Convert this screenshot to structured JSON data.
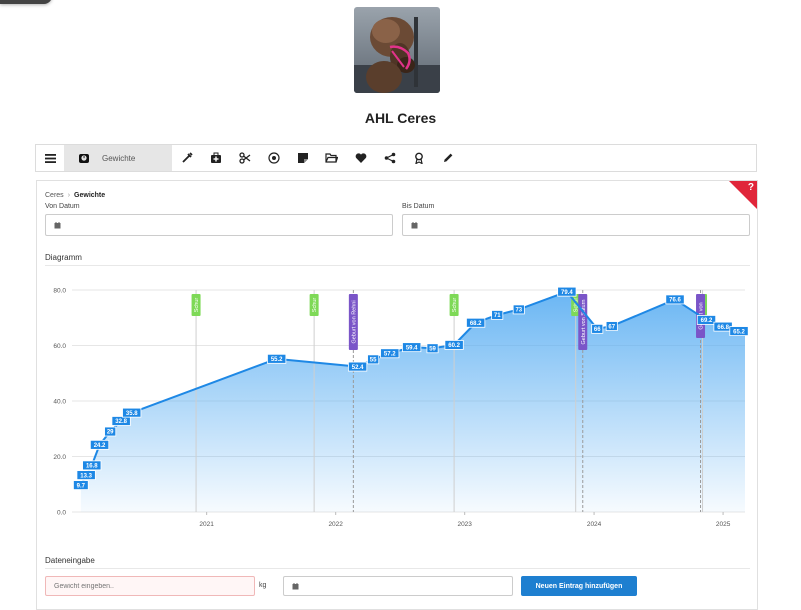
{
  "animal": {
    "name": "AHL Ceres"
  },
  "toolbar": {
    "active_label": "Gewichte",
    "icons": [
      "syringe-icon",
      "medkit-icon",
      "scissors-icon",
      "target-icon",
      "note-icon",
      "folder-icon",
      "heart-icon",
      "share-icon",
      "award-icon",
      "pencil-icon"
    ]
  },
  "breadcrumb": {
    "parent": "Ceres",
    "current": "Gewichte"
  },
  "filters": {
    "from_label": "Von Datum",
    "to_label": "Bis Datum"
  },
  "diagram_title": "Diagramm",
  "entry_title": "Dateneingabe",
  "entry": {
    "weight_placeholder": "Gewicht eingeben..",
    "unit": "kg",
    "submit_label": "Neuen Eintrag hinzufügen"
  },
  "help_label": "?",
  "colors": {
    "line": "#1e88e5",
    "accent_button": "#1e7fd0",
    "event_green": "#7ed957",
    "event_purple": "#7a55c8"
  },
  "chart_data": {
    "type": "area",
    "xlim": [
      "2020-06-15",
      "2025-09-01"
    ],
    "ylim": [
      0,
      80
    ],
    "yticks": [
      "0.0",
      "20.0",
      "40.0",
      "60.0",
      "80.0"
    ],
    "xticks": [
      "2021",
      "2022",
      "2023",
      "2024",
      "2025"
    ],
    "grid": true,
    "series": [
      {
        "points": [
          {
            "x": "2020-07-10",
            "y": 9.7,
            "label": "9.7"
          },
          {
            "x": "2020-07-25",
            "y": 13.3,
            "label": "13.3"
          },
          {
            "x": "2020-08-10",
            "y": 16.8,
            "label": "16.8"
          },
          {
            "x": "2020-09-01",
            "y": 24.2,
            "label": "24.2"
          },
          {
            "x": "2020-10-01",
            "y": 29,
            "label": "29"
          },
          {
            "x": "2020-11-01",
            "y": 32.8,
            "label": "32.8"
          },
          {
            "x": "2020-12-01",
            "y": 35.8,
            "label": "35.8"
          },
          {
            "x": "2022-01-15",
            "y": 55.2,
            "label": "55.2"
          },
          {
            "x": "2022-09-01",
            "y": 52.4,
            "label": "52.4"
          },
          {
            "x": "2022-10-15",
            "y": 55,
            "label": "55"
          },
          {
            "x": "2022-12-01",
            "y": 57.2,
            "label": "57.2"
          },
          {
            "x": "2023-02-01",
            "y": 59.4,
            "label": "59.4"
          },
          {
            "x": "2023-04-01",
            "y": 59,
            "label": "59"
          },
          {
            "x": "2023-06-01",
            "y": 60.2,
            "label": "60.2"
          },
          {
            "x": "2023-08-01",
            "y": 68.2,
            "label": "68.2"
          },
          {
            "x": "2023-10-01",
            "y": 71,
            "label": "71"
          },
          {
            "x": "2023-12-01",
            "y": 73,
            "label": "73"
          },
          {
            "x": "2024-04-15",
            "y": 79.4,
            "label": "79.4"
          },
          {
            "x": "2024-07-10",
            "y": 66,
            "label": "66"
          },
          {
            "x": "2024-08-20",
            "y": 67,
            "label": "67"
          },
          {
            "x": "2025-02-15",
            "y": 76.6,
            "label": "76.6"
          },
          {
            "x": "2025-05-15",
            "y": 69.2,
            "label": "69.2"
          },
          {
            "x": "2025-07-01",
            "y": 66.8,
            "label": "66.8"
          },
          {
            "x": "2025-08-15",
            "y": 65.2,
            "label": "65.2"
          }
        ]
      }
    ],
    "events": [
      {
        "date": "2021-06-01",
        "label": "Schur",
        "kind": "green"
      },
      {
        "date": "2022-05-01",
        "label": "Schur",
        "kind": "green"
      },
      {
        "date": "2022-08-20",
        "label": "Geburt von Rehni",
        "kind": "purple"
      },
      {
        "date": "2023-06-01",
        "label": "Schur",
        "kind": "green"
      },
      {
        "date": "2024-05-10",
        "label": "Schur",
        "kind": "green"
      },
      {
        "date": "2024-05-30",
        "label": "Geburt von Saturn",
        "kind": "purple"
      },
      {
        "date": "2025-05-01",
        "label": "Schur",
        "kind": "green"
      },
      {
        "date": "2025-05-01",
        "label": "Geburt von",
        "kind": "purple"
      }
    ]
  }
}
